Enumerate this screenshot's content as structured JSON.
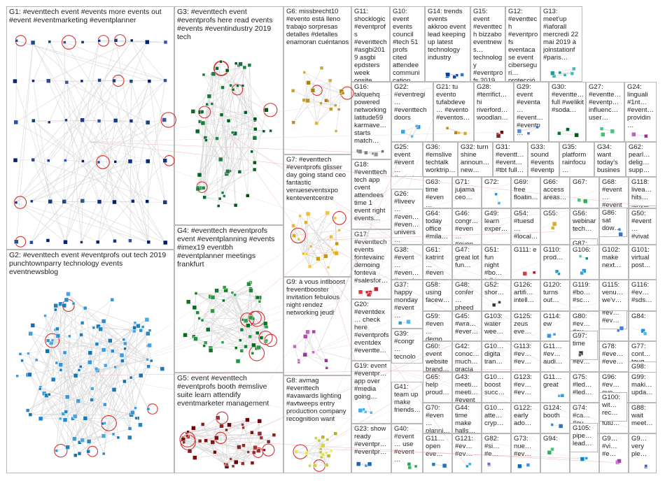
{
  "title": "",
  "edge_color": "#d8d8d8",
  "cross_edge_color": "#e89a9a",
  "node_palette": [
    "#1a3a8a",
    "#2f6fd0",
    "#2e9fe0",
    "#0a7a2e",
    "#3cbf6a",
    "#7a1f1f",
    "#c8202a",
    "#8a6fd0",
    "#d0a020",
    "#f0d050",
    "#2ea8a8",
    "#b050b0",
    "#e07a20",
    "#555555"
  ],
  "groups": [
    {
      "id": "G1",
      "label": "G1: #eventtech event #events more events out #event #eventmarketing #eventplanner",
      "color": "#1a3a8a",
      "density": 60
    },
    {
      "id": "G2",
      "label": "G2: #eventtech event #eventprofs out tech 2019 punchtownparry technology events eventnewsblog",
      "color": "#2e8fd0",
      "density": 120
    },
    {
      "id": "G3",
      "label": "G3: #eventtech event #eventprofs here read events #events #eventindustry 2019 tech",
      "color": "#0a6a2e",
      "density": 60
    },
    {
      "id": "G4",
      "label": "G4: #eventtech #eventprofs event #eventplanning #events #imex19 eventbh #eventplanner meetings frankfurt",
      "color": "#1f8a3a",
      "density": 55
    },
    {
      "id": "G5",
      "label": "G5: event #eventtech #eventprofs booth #emslive suite learn attendify eventmarketer management",
      "color": "#8a1f1f",
      "density": 45
    },
    {
      "id": "G6",
      "label": "G6: missbrecht10 #evento está lleno trabajo sorpresas detalles #detalles enamoran cuéntanos",
      "color": "#c8a030",
      "density": 20
    },
    {
      "id": "G7",
      "label": "G7: #eventtech #eventprofs glisser day going stand ceo fantastic venueseventsxpo kenteventcentre",
      "color": "#e0b020",
      "density": 22
    },
    {
      "id": "G8",
      "label": "G8: avmag #eventtech #avawards lighting #avtweeps entry production company recognition want",
      "color": "#d0d040",
      "density": 18
    },
    {
      "id": "G9",
      "label": "G9: à vous intlboost freventbooster invitation febulous night rendez networking jeudi",
      "color": "#b050b0",
      "density": 10
    },
    {
      "id": "G10",
      "label": "G10: event events council #tech 51 profs cited attendee communication biggest challenge",
      "color": "#2e9fe0",
      "density": 8
    },
    {
      "id": "G11",
      "label": "G11: shocklogic #eventprofs #eventtech #asgbi2019 asgbi epdsters week onsite…",
      "color": "#2e7fd0",
      "density": 8
    },
    {
      "id": "G12",
      "label": "G12: #eventtech #eventprofs eventacase event ciberseguri… protección…",
      "color": "#3aa060",
      "density": 6
    },
    {
      "id": "G13",
      "label": "G13: meet'up #iaforall mercredi 22 mai 2019 à joinstationf #paris…",
      "color": "#2ea8a8",
      "density": 6
    },
    {
      "id": "G14",
      "label": "G14: trends events akkroo event lead keeping up latest technology industry",
      "color": "#1a5ab0",
      "density": 6
    },
    {
      "id": "G15",
      "label": "G15: event #eventtech bizzabo eventnews… technology #eventprofs 2019 ee 5g…",
      "color": "#2f6fd0",
      "density": 6
    },
    {
      "id": "G16",
      "label": "G16: talquehq powered networking latitude59 karmave… starts match…",
      "color": "#7a7a7a",
      "density": 6
    },
    {
      "id": "G17",
      "label": "G17: #eventtech events fontevainc demoing fonteva #salesfor…",
      "color": "#c8202a",
      "density": 5
    },
    {
      "id": "G18",
      "label": "G18: #eventtech tech app cvent attendees time 1 event right events…",
      "color": "#2e6fd0",
      "density": 5
    },
    {
      "id": "G19",
      "label": "G19: event #eventpr… app over #media going…",
      "color": "#2e9fe0",
      "density": 4
    },
    {
      "id": "G20",
      "label": "G20: #eventdex… check here #eventprofs eventdex #eventte…",
      "color": "#8a6fd0",
      "density": 4
    },
    {
      "id": "G21",
      "label": "G21: tu evento tufabdeve… #evento #eventos…",
      "color": "#c8a030",
      "density": 4
    },
    {
      "id": "G22",
      "label": "G22: #eventregi… #eventtech doors",
      "color": "#2e9fe0",
      "density": 4
    },
    {
      "id": "G23",
      "label": "G23: show ready #eventpr… #eventpr…",
      "color": "#2e7fd0",
      "density": 3
    },
    {
      "id": "G24",
      "label": "G24: linguali #1nt… #event… providin…",
      "color": "#b050b0",
      "density": 3
    },
    {
      "id": "G25",
      "label": "G25: event #event… #event…",
      "color": "#2e9fe0",
      "density": 3
    },
    {
      "id": "G26",
      "label": "G26: #liveev… #even… #even… univers… great…",
      "color": "#2ea8a8",
      "density": 3
    },
    {
      "id": "G27",
      "label": "G27: #eventte… #eventp… influenc… user…",
      "color": "#3cbf6a",
      "density": 3
    },
    {
      "id": "G28",
      "label": "G28: #terrifict… hi riverford… woodlan…",
      "color": "#7a1f1f",
      "density": 3
    },
    {
      "id": "G29",
      "label": "G29: event #eventa… #event… #eventp…",
      "color": "#2f6fd0",
      "density": 3
    },
    {
      "id": "G30",
      "label": "G30: #eventte… full #welikit #soda…",
      "color": "#0a7a2e",
      "density": 3
    },
    {
      "id": "G31",
      "label": "G31: #eventt… #event… #tbt full…",
      "color": "#1a3a8a",
      "density": 3
    },
    {
      "id": "G32",
      "label": "G32: turn shine announ… new…",
      "color": "#555555",
      "density": 3
    },
    {
      "id": "G33",
      "label": "G33: sound #events #eventp…",
      "color": "#2e9fe0",
      "density": 3
    },
    {
      "id": "G34",
      "label": "G34: want today's busines…",
      "color": "#2e7fd0",
      "density": 3
    },
    {
      "id": "G35",
      "label": "G35: platform rainfocu… many…",
      "color": "#8a6fd0",
      "density": 3
    },
    {
      "id": "G36",
      "label": "G36: #emslive techtalk worktrip…",
      "color": "#c8202a",
      "density": 3
    },
    {
      "id": "G37",
      "label": "G37: happy monday #event…",
      "color": "#2e9fe0",
      "density": 3
    },
    {
      "id": "G38",
      "label": "G38: #event… #even… #event…",
      "color": "#2ea8a8",
      "density": 3
    },
    {
      "id": "G39",
      "label": "G39: #congr… tecnolo… #tecnol…",
      "color": "#b050b0",
      "density": 3
    },
    {
      "id": "G40",
      "label": "G40: #event… use #event…",
      "color": "#3cbf6a",
      "density": 3
    },
    {
      "id": "G41",
      "label": "G41: team up make friends…",
      "color": "#2e7fd0",
      "density": 3
    },
    {
      "id": "G42",
      "label": "G42: conoc… much… gracia… …",
      "color": "#c8a030",
      "density": 3
    },
    {
      "id": "G43",
      "label": "G43: meeti… meeti… #event…",
      "color": "#2f6fd0",
      "density": 3
    },
    {
      "id": "G44",
      "label": "G44: time make halls…",
      "color": "#555555",
      "density": 3
    },
    {
      "id": "G45",
      "label": "G45: #wra… #ever… …",
      "color": "#c8202a",
      "density": 3
    },
    {
      "id": "G46",
      "label": "G46: congr… #even… #even…",
      "color": "#2e9fe0",
      "density": 3
    },
    {
      "id": "G47",
      "label": "G47: great lot fun…",
      "color": "#0a7a2e",
      "density": 3
    },
    {
      "id": "G48",
      "label": "G48: confer… pheed… live…",
      "color": "#8a6fd0",
      "density": 3
    },
    {
      "id": "G49",
      "label": "G49: learn exper…",
      "color": "#2e7fd0",
      "density": 3
    },
    {
      "id": "G50",
      "label": "G50: #event… #vivat…",
      "color": "#e07a20",
      "density": 3
    },
    {
      "id": "G51",
      "label": "G51: fun night #bo… talki…",
      "color": "#2e9fe0",
      "density": 3
    },
    {
      "id": "G52",
      "label": "G52: shor…",
      "color": "#555555",
      "density": 2
    },
    {
      "id": "G53",
      "label": "G53:",
      "color": "#2f6fd0",
      "density": 2
    },
    {
      "id": "G54",
      "label": "G54: #tuesd… #local…",
      "color": "#3cbf6a",
      "density": 2
    },
    {
      "id": "G55",
      "label": "G55:",
      "color": "#c8a030",
      "density": 2
    },
    {
      "id": "G56",
      "label": "G56: webinar tech…",
      "color": "#2e7fd0",
      "density": 2
    },
    {
      "id": "G57",
      "label": "G57: up 62 plain lanyar…",
      "color": "#2ea8a8",
      "density": 2
    },
    {
      "id": "G58",
      "label": "G58: using facew…",
      "color": "#2e9fe0",
      "density": 2
    },
    {
      "id": "G59",
      "label": "G59: #even… demo #bran…",
      "color": "#8a6fd0",
      "density": 2
    },
    {
      "id": "G60",
      "label": "G60: event website brand…",
      "color": "#2f6fd0",
      "density": 2
    },
    {
      "id": "G61",
      "label": "G61: katrint… #even…",
      "color": "#c8202a",
      "density": 2
    },
    {
      "id": "G62",
      "label": "G62: pearl… delig… supp…",
      "color": "#0a7a2e",
      "density": 2
    },
    {
      "id": "G63",
      "label": "G63: time #even… #even…",
      "color": "#2e9fe0",
      "density": 2
    },
    {
      "id": "G64",
      "label": "G64: today office #mila…",
      "color": "#2e7fd0",
      "density": 2
    },
    {
      "id": "G65",
      "label": "G65: help proud…",
      "color": "#3cbf6a",
      "density": 2
    },
    {
      "id": "G66",
      "label": "G66: access areas…",
      "color": "#2f6fd0",
      "density": 2
    },
    {
      "id": "G67",
      "label": "G67:",
      "color": "#3cbf6a",
      "density": 2
    },
    {
      "id": "G68",
      "label": "G68: #event… #event…",
      "color": "#2ea8a8",
      "density": 2
    },
    {
      "id": "G69",
      "label": "G69: free floatin…",
      "color": "#0a7a2e",
      "density": 2
    },
    {
      "id": "G70",
      "label": "G70: #even… planni… sever…",
      "color": "#c8a030",
      "density": 2
    },
    {
      "id": "G71",
      "label": "G71: jujama ceo…",
      "color": "#555555",
      "density": 2
    },
    {
      "id": "G72",
      "label": "G72:",
      "color": "#2e9fe0",
      "density": 2
    },
    {
      "id": "G73",
      "label": "G73: nue… #ev…",
      "color": "#2e7fd0",
      "density": 2
    },
    {
      "id": "G74",
      "label": "G74: #ca… #ev…",
      "color": "#c8a030",
      "density": 2
    },
    {
      "id": "G75",
      "label": "G75: #led… #led…",
      "color": "#3cbf6a",
      "density": 2
    },
    {
      "id": "G76",
      "label": "G76: event dow…",
      "color": "#2f6fd0",
      "density": 2
    },
    {
      "id": "G77",
      "label": "G77: cont… toug…",
      "color": "#555555",
      "density": 2
    },
    {
      "id": "G78",
      "label": "G78: #eve… #eve…",
      "color": "#2e9fe0",
      "density": 2
    },
    {
      "id": "G79",
      "label": "G79: #try… #ev…",
      "color": "#c8202a",
      "density": 2
    },
    {
      "id": "G80",
      "label": "G80: #ev… #ev…",
      "color": "#2e7fd0",
      "density": 2
    },
    {
      "id": "G81",
      "label": "G81: event out…",
      "color": "#3cbf6a",
      "density": 2
    },
    {
      "id": "G82",
      "label": "G82: #si… #e…",
      "color": "#8a6fd0",
      "density": 2
    },
    {
      "id": "G83",
      "label": "G83:",
      "color": "#2ea8a8",
      "density": 2
    },
    {
      "id": "G84",
      "label": "G84:",
      "color": "#2e9fe0",
      "density": 2
    },
    {
      "id": "G85",
      "label": "G85:",
      "color": "#2f6fd0",
      "density": 2
    },
    {
      "id": "G86",
      "label": "G86: sat dow…",
      "color": "#555555",
      "density": 2
    },
    {
      "id": "G87",
      "label": "G87: now event…",
      "color": "#2e7fd0",
      "density": 2
    },
    {
      "id": "G88",
      "label": "G88: wait meet…",
      "color": "#3cbf6a",
      "density": 2
    },
    {
      "id": "G89",
      "label": "G89:",
      "color": "#2e9fe0",
      "density": 2
    },
    {
      "id": "G90",
      "label": "G9… #vi… #e…",
      "color": "#b050b0",
      "density": 2
    },
    {
      "id": "G91",
      "label": "G9… very ple…",
      "color": "#2f6fd0",
      "density": 2
    },
    {
      "id": "G92",
      "label": "G9… lov… pur…",
      "color": "#c8202a",
      "density": 2
    },
    {
      "id": "G93",
      "label": "G93: eve… futu…",
      "color": "#2e7fd0",
      "density": 2
    },
    {
      "id": "G94",
      "label": "G94:",
      "color": "#3cbf6a",
      "density": 2
    },
    {
      "id": "G95",
      "label": "G95: #ev… #ev…",
      "color": "#0a7a2e",
      "density": 2
    },
    {
      "id": "G96",
      "label": "G96: #ev… eve…",
      "color": "#2e9fe0",
      "density": 2
    },
    {
      "id": "G97",
      "label": "G97: time",
      "color": "#555555",
      "density": 2
    },
    {
      "id": "G98",
      "label": "G98: welc… 9…",
      "color": "#2ea8a8",
      "density": 2
    },
    {
      "id": "G99",
      "label": "G99: maki… upda…",
      "color": "#2f6fd0",
      "density": 2
    },
    {
      "id": "G100",
      "label": "G100: wit… rec…",
      "color": "#2e7fd0",
      "density": 2
    },
    {
      "id": "G101",
      "label": "G101: virtual post…",
      "color": "#8a6fd0",
      "density": 2
    },
    {
      "id": "G102",
      "label": "G102: make next…",
      "color": "#2e9fe0",
      "density": 2
    },
    {
      "id": "G103",
      "label": "G103: water wee…",
      "color": "#2e7fd0",
      "density": 2
    },
    {
      "id": "G104",
      "label": "G10… digita tran…",
      "color": "#555555",
      "density": 2
    },
    {
      "id": "G105",
      "label": "G105: pipe… lead…",
      "color": "#3cbf6a",
      "density": 2
    },
    {
      "id": "G106",
      "label": "G106:",
      "color": "#2e9fe0",
      "density": 2
    },
    {
      "id": "G107",
      "label": "G10… boost succ…",
      "color": "#2f6fd0",
      "density": 2
    },
    {
      "id": "G108",
      "label": "G10… atte… cryp…",
      "color": "#c8a030",
      "density": 2
    },
    {
      "id": "G109",
      "label": "G11… open eve…",
      "color": "#2e7fd0",
      "density": 2
    },
    {
      "id": "G110",
      "label": "G110: prod…",
      "color": "#2e9fe0",
      "density": 2
    },
    {
      "id": "G111",
      "label": "G111: e",
      "color": "#c8202a",
      "density": 2
    },
    {
      "id": "G112",
      "label": "G11… #ev… audi…",
      "color": "#2f6fd0",
      "density": 2
    },
    {
      "id": "G113",
      "label": "G113: #ev… #ev…",
      "color": "#3cbf6a",
      "density": 2
    },
    {
      "id": "G114",
      "label": "G114: ew",
      "color": "#2e7fd0",
      "density": 2
    },
    {
      "id": "G115",
      "label": "G115: venu… we'v…",
      "color": "#2ea8a8",
      "density": 2
    },
    {
      "id": "G116",
      "label": "G116: #ev… #sds…",
      "color": "#8a6fd0",
      "density": 2
    },
    {
      "id": "G117",
      "label": "G11… great",
      "color": "#2e9fe0",
      "density": 2
    },
    {
      "id": "G118",
      "label": "G118: livea… hits…",
      "color": "#2f6fd0",
      "density": 2
    },
    {
      "id": "G119",
      "label": "G119: #bo… #sc…",
      "color": "#2e7fd0",
      "density": 2
    },
    {
      "id": "G120",
      "label": "G120: turns out…",
      "color": "#555555",
      "density": 2
    },
    {
      "id": "G121",
      "label": "G121: #ev… #ev…",
      "color": "#2e9fe0",
      "density": 2
    },
    {
      "id": "G122",
      "label": "G122: early ado…",
      "color": "#3cbf6a",
      "density": 2
    },
    {
      "id": "G123",
      "label": "G123: #ev… #ev…",
      "color": "#2f6fd0",
      "density": 2
    },
    {
      "id": "G124",
      "label": "G124: booth",
      "color": "#2e7fd0",
      "density": 2
    },
    {
      "id": "G125",
      "label": "G125: zeus eve…",
      "color": "#2e9fe0",
      "density": 2
    },
    {
      "id": "G126",
      "label": "G126: artifi… intell…",
      "color": "#8a6fd0",
      "density": 2
    }
  ]
}
